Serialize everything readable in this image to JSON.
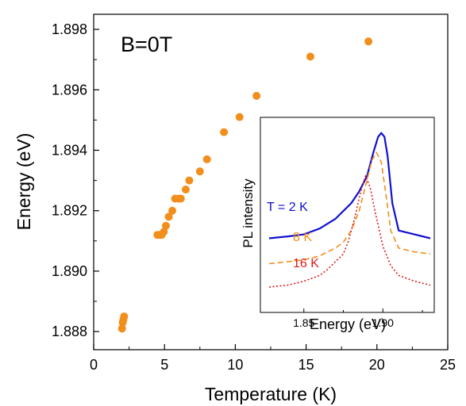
{
  "chart_data": [
    {
      "type": "scatter",
      "title": "",
      "annotation": "B=0T",
      "xlabel": "Temperature (K)",
      "ylabel": "Energy (eV)",
      "xlim": [
        0,
        25
      ],
      "ylim": [
        1.8874,
        1.8985
      ],
      "xticks": [
        "0",
        "5",
        "10",
        "15",
        "20",
        "25"
      ],
      "yticks": [
        "1.888",
        "1.890",
        "1.892",
        "1.894",
        "1.896",
        "1.898"
      ],
      "marker_color": "#f28e1c",
      "series": [
        {
          "x": [
            2.0,
            2.05,
            2.1,
            2.15,
            4.5,
            4.65,
            4.8,
            4.95,
            5.1,
            5.3,
            5.55,
            5.75,
            6.0,
            6.15,
            6.5,
            6.75,
            7.5,
            8.0,
            9.2,
            10.3,
            11.5,
            15.3,
            19.4
          ],
          "y": [
            1.8881,
            1.8883,
            1.8884,
            1.8885,
            1.8912,
            1.8912,
            1.8912,
            1.8913,
            1.8915,
            1.8918,
            1.892,
            1.8924,
            1.8924,
            1.8924,
            1.8927,
            1.893,
            1.8933,
            1.8937,
            1.8946,
            1.8951,
            1.8958,
            1.8971,
            1.8976
          ]
        }
      ]
    },
    {
      "type": "line",
      "title": "",
      "xlabel": "Energy (eV)",
      "ylabel": "PL intensity",
      "xlim": [
        1.8225,
        1.9325
      ],
      "xticks": [
        "1.85",
        "1.90"
      ],
      "series": [
        {
          "name": "T = 2 K",
          "color": "#1010d0",
          "style": "solid",
          "x": [
            1.828,
            1.84,
            1.85,
            1.86,
            1.87,
            1.88,
            1.885,
            1.89,
            1.894,
            1.897,
            1.899,
            1.901,
            1.903,
            1.906,
            1.91,
            1.92,
            1.93
          ],
          "y": [
            0.38,
            0.39,
            0.4,
            0.43,
            0.48,
            0.56,
            0.62,
            0.7,
            0.82,
            0.9,
            0.92,
            0.9,
            0.8,
            0.56,
            0.42,
            0.4,
            0.38
          ]
        },
        {
          "name": "8 K",
          "color": "#f28e1c",
          "style": "dashed",
          "x": [
            1.828,
            1.84,
            1.85,
            1.86,
            1.865,
            1.87,
            1.875,
            1.88,
            1.885,
            1.89,
            1.893,
            1.896,
            1.899,
            1.902,
            1.905,
            1.91,
            1.92,
            1.93
          ],
          "y": [
            0.25,
            0.26,
            0.27,
            0.29,
            0.31,
            0.33,
            0.36,
            0.42,
            0.52,
            0.68,
            0.78,
            0.82,
            0.77,
            0.6,
            0.42,
            0.33,
            0.31,
            0.3
          ]
        },
        {
          "name": "16 K",
          "color": "#e01a1a",
          "style": "dotted",
          "x": [
            1.828,
            1.84,
            1.85,
            1.86,
            1.865,
            1.87,
            1.875,
            1.878,
            1.882,
            1.886,
            1.889,
            1.892,
            1.895,
            1.9,
            1.905,
            1.91,
            1.92,
            1.93
          ],
          "y": [
            0.13,
            0.14,
            0.16,
            0.19,
            0.22,
            0.26,
            0.3,
            0.36,
            0.48,
            0.62,
            0.7,
            0.64,
            0.52,
            0.34,
            0.24,
            0.19,
            0.16,
            0.14
          ]
        }
      ]
    }
  ]
}
